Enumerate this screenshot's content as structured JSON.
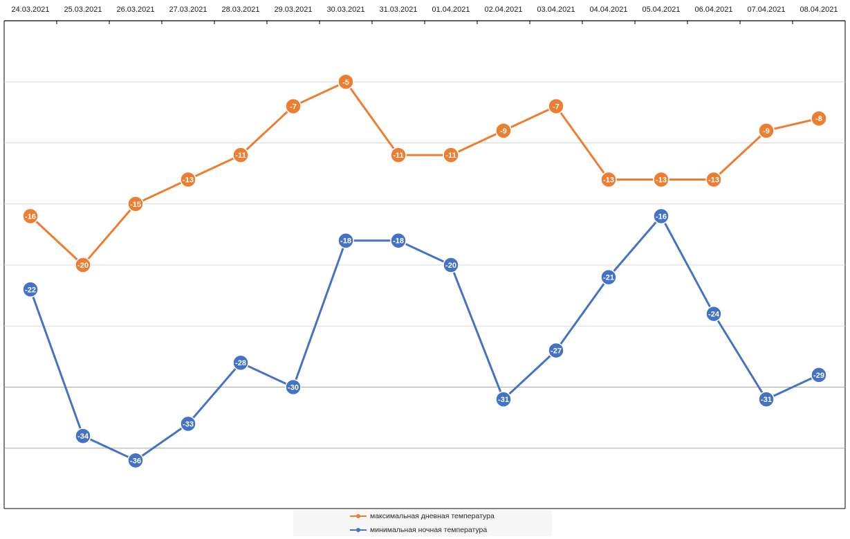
{
  "colors": {
    "max_series": "#ED7D31",
    "min_series": "#4472C4",
    "grid": "#d9d9d9",
    "axis": "#000000"
  },
  "chart_data": {
    "type": "line",
    "categories": [
      "24.03.2021",
      "25.03.2021",
      "26.03.2021",
      "27.03.2021",
      "28.03.2021",
      "29.03.2021",
      "30.03.2021",
      "31.03.2021",
      "01.04.2021",
      "02.04.2021",
      "03.04.2021",
      "04.04.2021",
      "05.04.2021",
      "06.04.2021",
      "07.04.2021",
      "08.04.2021"
    ],
    "series": [
      {
        "name": "максимальная дневная температура",
        "color": "#ED7D31",
        "values": [
          -16,
          -20,
          -15,
          -13,
          -11,
          -7,
          -5,
          -11,
          -11,
          -9,
          -7,
          -13,
          -13,
          -13,
          -9,
          -8
        ]
      },
      {
        "name": "минимальная ночная температура",
        "color": "#4472C4",
        "values": [
          -22,
          -34,
          -36,
          -33,
          -28,
          -30,
          -18,
          -18,
          -20,
          -31,
          -27,
          -21,
          -16,
          -24,
          -31,
          -29
        ]
      }
    ],
    "ylim": [
      -40,
      0
    ],
    "y_gridlines": [
      -35,
      -30,
      -25,
      -20,
      -15,
      -10,
      -5
    ],
    "x_axis_position": "top",
    "y_tick_labels_shown": false,
    "data_labels": true,
    "legend_position": "bottom",
    "grid": true
  }
}
